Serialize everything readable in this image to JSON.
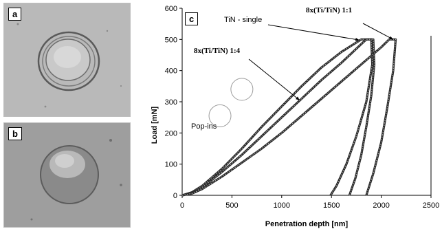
{
  "panels": [
    {
      "label": "a"
    },
    {
      "label": "b"
    },
    {
      "label": "c"
    }
  ],
  "chart_data": {
    "type": "line",
    "xlabel": "Penetration depth [nm]",
    "ylabel": "Load [mN]",
    "xlim": [
      0,
      2500
    ],
    "ylim": [
      0,
      600
    ],
    "xticks": [
      0,
      500,
      1000,
      1500,
      2000,
      2500
    ],
    "yticks": [
      0,
      100,
      200,
      300,
      400,
      500,
      600
    ],
    "grid": false,
    "series": [
      {
        "name": "TiN - single",
        "x": [
          0,
          100,
          200,
          400,
          600,
          800,
          1000,
          1200,
          1400,
          1600,
          1800,
          1880,
          1920,
          1930,
          1900,
          1850,
          1800,
          1740,
          1680
        ],
        "y": [
          0,
          10,
          30,
          85,
          150,
          220,
          285,
          350,
          410,
          460,
          500,
          500,
          500,
          420,
          320,
          220,
          130,
          55,
          0
        ]
      },
      {
        "name": "8x(Ti/TiN) 1:4",
        "x": [
          0,
          100,
          200,
          400,
          600,
          800,
          1000,
          1200,
          1400,
          1600,
          1800,
          1850,
          1900,
          1910,
          1850,
          1750,
          1650,
          1550,
          1490
        ],
        "y": [
          0,
          8,
          25,
          75,
          130,
          190,
          250,
          310,
          370,
          425,
          485,
          500,
          500,
          420,
          300,
          190,
          100,
          30,
          0
        ]
      },
      {
        "name": "8x(Ti/TiN) 1:1",
        "x": [
          0,
          100,
          200,
          400,
          600,
          800,
          1000,
          1200,
          1400,
          1600,
          1800,
          2000,
          2080,
          2130,
          2145,
          2120,
          2060,
          2000,
          1920,
          1850
        ],
        "y": [
          0,
          6,
          20,
          60,
          105,
          150,
          200,
          255,
          310,
          365,
          420,
          475,
          500,
          500,
          500,
          400,
          280,
          170,
          70,
          0
        ]
      }
    ],
    "annotations": [
      {
        "text": "TiN - single",
        "target": {
          "x": 1780,
          "y": 498
        }
      },
      {
        "text": "8x(Ti/TiN) 1:1",
        "target": {
          "x": 2120,
          "y": 500
        }
      },
      {
        "text": "8x(Ti/TiN) 1:4",
        "target": {
          "x": 1180,
          "y": 305
        }
      },
      {
        "text": "Pop-ins",
        "circles": [
          {
            "x": 380,
            "y": 255
          },
          {
            "x": 600,
            "y": 340
          }
        ]
      }
    ]
  }
}
